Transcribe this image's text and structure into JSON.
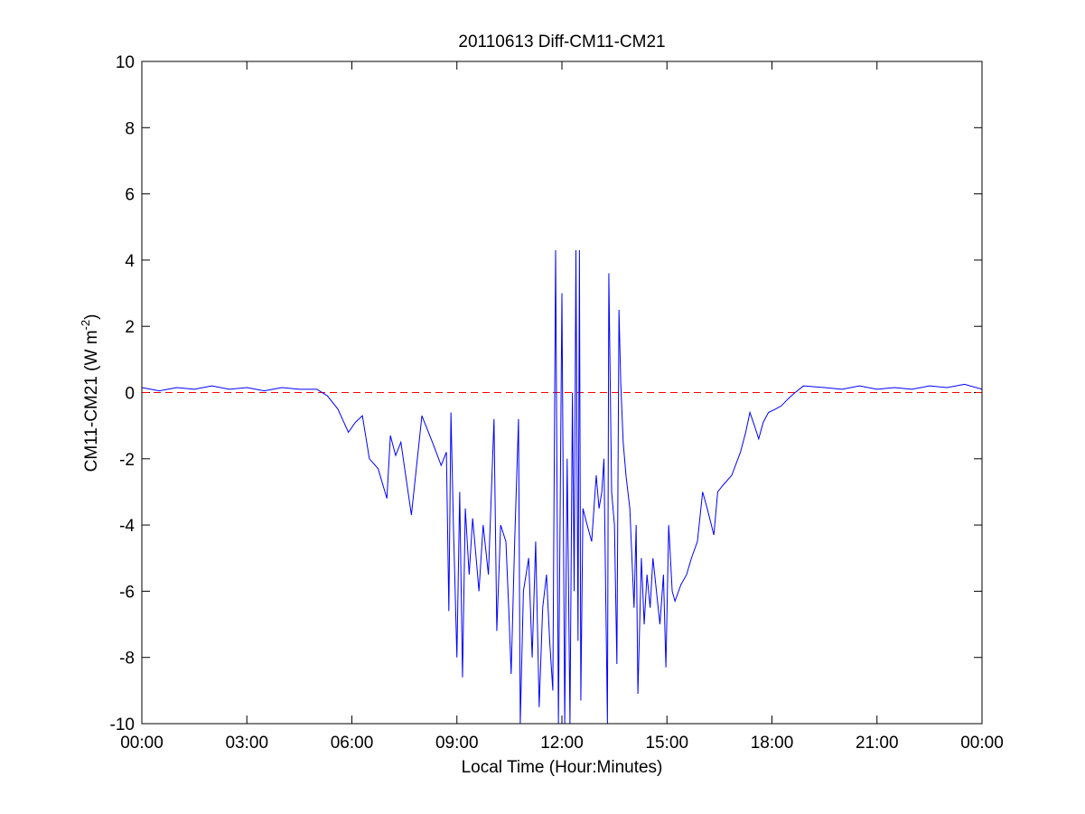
{
  "chart_data": {
    "type": "line",
    "title": "20110613 Diff-CM11-CM21",
    "xlabel": "Local Time (Hour:Minutes)",
    "ylabel": {
      "text": "CM11-CM21 (W m",
      "superscript": "-2",
      "suffix": ")"
    },
    "x": [
      0,
      0.5,
      1,
      1.5,
      2,
      2.5,
      3,
      3.5,
      4,
      4.5,
      5,
      5.3,
      5.6,
      5.9,
      6.1,
      6.3,
      6.5,
      6.75,
      7.0,
      7.1,
      7.25,
      7.4,
      7.55,
      7.7,
      7.85,
      8.0,
      8.3,
      8.55,
      8.7,
      8.77,
      8.83,
      8.9,
      9.0,
      9.08,
      9.16,
      9.24,
      9.35,
      9.45,
      9.55,
      9.63,
      9.75,
      9.9,
      10.06,
      10.14,
      10.25,
      10.4,
      10.48,
      10.55,
      10.65,
      10.76,
      10.81,
      10.9,
      11.05,
      11.15,
      11.25,
      11.35,
      11.45,
      11.56,
      11.65,
      11.74,
      11.82,
      11.9,
      12.0,
      12.08,
      12.15,
      12.23,
      12.3,
      12.35,
      12.4,
      12.46,
      12.5,
      12.54,
      12.6,
      12.72,
      12.85,
      12.98,
      13.06,
      13.14,
      13.2,
      13.3,
      13.34,
      13.42,
      13.5,
      13.57,
      13.63,
      13.68,
      13.75,
      13.83,
      13.94,
      14.06,
      14.12,
      14.17,
      14.27,
      14.35,
      14.43,
      14.52,
      14.6,
      14.7,
      14.8,
      14.9,
      14.97,
      15.05,
      15.15,
      15.23,
      15.4,
      15.56,
      15.7,
      15.87,
      16.02,
      16.15,
      16.34,
      16.45,
      16.6,
      16.85,
      17.1,
      17.25,
      17.37,
      17.5,
      17.62,
      17.75,
      17.9,
      18.1,
      18.27,
      18.45,
      18.66,
      18.9,
      19.5,
      20,
      20.5,
      21,
      21.5,
      22,
      22.5,
      23,
      23.5,
      24
    ],
    "series": [
      {
        "name": "CM11-CM21",
        "color": "#0000ff",
        "values": [
          0.15,
          0.05,
          0.15,
          0.1,
          0.2,
          0.1,
          0.15,
          0.05,
          0.15,
          0.1,
          0.1,
          -0.1,
          -0.5,
          -1.2,
          -0.9,
          -0.7,
          -2.0,
          -2.3,
          -3.2,
          -1.3,
          -1.9,
          -1.5,
          -2.6,
          -3.7,
          -2.2,
          -0.7,
          -1.5,
          -2.2,
          -1.8,
          -6.6,
          -0.6,
          -4.0,
          -8.0,
          -3.0,
          -8.6,
          -3.5,
          -5.5,
          -3.8,
          -5.0,
          -6.0,
          -4.0,
          -5.5,
          -0.8,
          -7.2,
          -4.0,
          -4.5,
          -6.5,
          -8.5,
          -4.5,
          -0.8,
          -10,
          -6.0,
          -5.0,
          -8.0,
          -4.5,
          -9.5,
          -6.5,
          -5.5,
          -7.5,
          -9.0,
          4.3,
          -10,
          3.0,
          -10,
          -2.0,
          -10,
          0.0,
          -6,
          4.3,
          -7.5,
          4.3,
          -9.3,
          -3.5,
          -4.0,
          -4.5,
          -2.5,
          -3.5,
          -3.0,
          -2.0,
          -10,
          3.6,
          -3.0,
          -4.0,
          -8.2,
          2.5,
          0.3,
          -1.5,
          -2.5,
          -3.5,
          -6.5,
          -4.0,
          -9.1,
          -5.0,
          -7.0,
          -5.5,
          -6.5,
          -5.0,
          -6.0,
          -7.0,
          -5.5,
          -8.3,
          -4.0,
          -6.0,
          -6.3,
          -5.8,
          -5.5,
          -5.0,
          -4.5,
          -3.0,
          -3.5,
          -4.3,
          -3.0,
          -2.8,
          -2.5,
          -1.8,
          -1.2,
          -0.6,
          -1.0,
          -1.4,
          -0.9,
          -0.6,
          -0.5,
          -0.4,
          -0.2,
          0.0,
          0.2,
          0.15,
          0.1,
          0.2,
          0.1,
          0.15,
          0.1,
          0.2,
          0.15,
          0.25,
          0.1
        ]
      }
    ],
    "reference_line": {
      "value": 0,
      "color": "#ff0000"
    },
    "xlim": [
      0,
      24
    ],
    "xticks": [
      {
        "value": 0,
        "label": "00:00"
      },
      {
        "value": 3,
        "label": "03:00"
      },
      {
        "value": 6,
        "label": "06:00"
      },
      {
        "value": 9,
        "label": "09:00"
      },
      {
        "value": 12,
        "label": "12:00"
      },
      {
        "value": 15,
        "label": "15:00"
      },
      {
        "value": 18,
        "label": "18:00"
      },
      {
        "value": 21,
        "label": "21:00"
      },
      {
        "value": 24,
        "label": "00:00"
      }
    ],
    "ylim": [
      -10,
      10
    ],
    "yticks": [
      -10,
      -8,
      -6,
      -4,
      -2,
      0,
      2,
      4,
      6,
      8,
      10
    ],
    "grid": false
  }
}
